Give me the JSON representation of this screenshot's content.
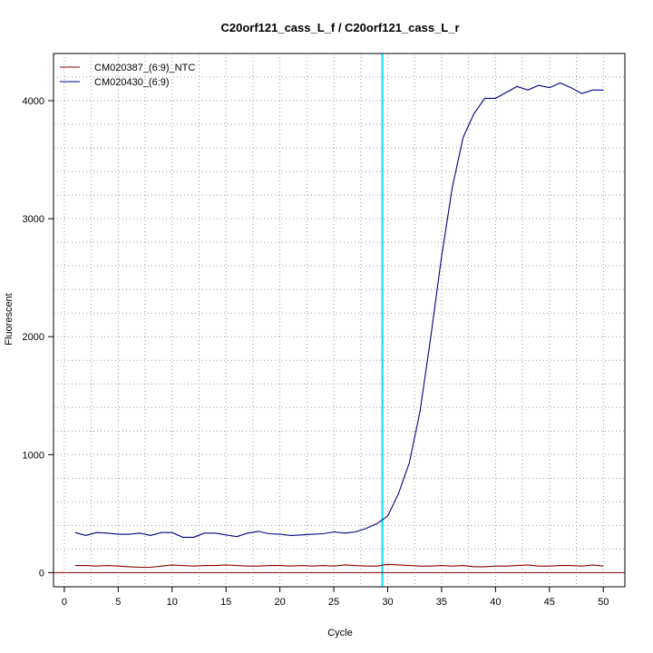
{
  "chart_data": {
    "type": "line",
    "title": "C20orf121_cass_L_f / C20orf121_cass_L_r",
    "xlabel": "Cycle",
    "ylabel": "Fluorescent",
    "xlim": [
      -1,
      52
    ],
    "ylim": [
      -120,
      4400
    ],
    "x_ticks": [
      0,
      5,
      10,
      15,
      20,
      25,
      30,
      35,
      40,
      45,
      50
    ],
    "y_ticks": [
      0,
      1000,
      2000,
      3000,
      4000
    ],
    "grid": true,
    "legend_position": "top-left",
    "threshold_x": 29.5,
    "threshold_color": "#00e5ee",
    "baseline_y": 0,
    "baseline_color": "#8b0000",
    "x": [
      1,
      2,
      3,
      4,
      5,
      6,
      7,
      8,
      9,
      10,
      11,
      12,
      13,
      14,
      15,
      16,
      17,
      18,
      19,
      20,
      21,
      22,
      23,
      24,
      25,
      26,
      27,
      28,
      29,
      30,
      31,
      32,
      33,
      34,
      35,
      36,
      37,
      38,
      39,
      40,
      41,
      42,
      43,
      44,
      45,
      46,
      47,
      48,
      49,
      50
    ],
    "series": [
      {
        "name": "CM020387_(6:9)_NTC",
        "color": "#8b0000",
        "values": [
          60,
          60,
          55,
          60,
          55,
          50,
          45,
          45,
          55,
          65,
          60,
          55,
          60,
          60,
          65,
          60,
          55,
          55,
          60,
          60,
          55,
          60,
          55,
          60,
          55,
          65,
          60,
          55,
          55,
          70,
          65,
          60,
          55,
          55,
          60,
          55,
          60,
          50,
          50,
          55,
          55,
          60,
          65,
          55,
          55,
          60,
          60,
          55,
          65,
          55
        ]
      },
      {
        "name": "CM020430_(6:9)",
        "color": "#000080",
        "values": [
          340,
          315,
          340,
          335,
          325,
          325,
          335,
          315,
          340,
          340,
          300,
          300,
          335,
          335,
          320,
          305,
          335,
          350,
          330,
          325,
          315,
          320,
          325,
          330,
          345,
          335,
          345,
          375,
          415,
          480,
          670,
          930,
          1370,
          2000,
          2680,
          3270,
          3690,
          3890,
          4020,
          4020,
          4070,
          4120,
          4090,
          4130,
          4110,
          4150,
          4110,
          4060,
          4090,
          4090
        ]
      }
    ]
  }
}
